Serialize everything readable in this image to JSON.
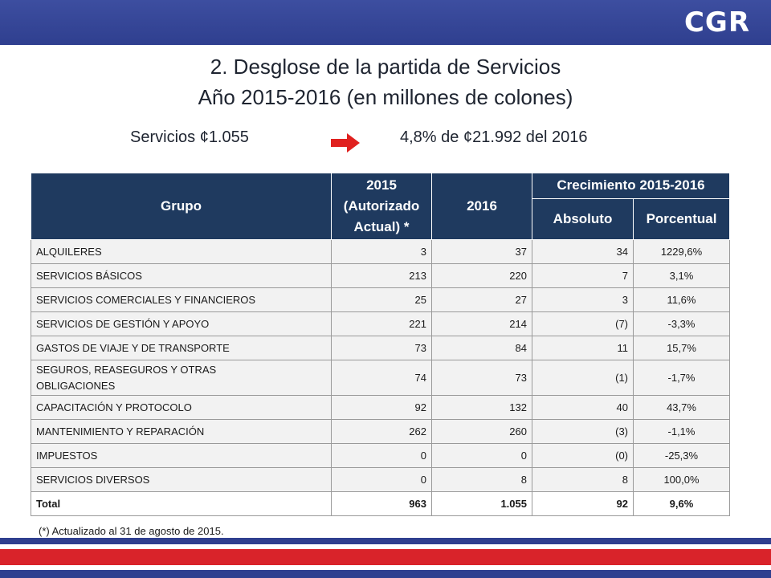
{
  "logo": "CGR",
  "title": {
    "line1": "2. Desglose de la partida de Servicios",
    "line2": "Año 2015-2016 (en millones de colones)"
  },
  "summary": {
    "left": "Servicios ¢1.055",
    "right": "4,8%  de ¢21.992 del 2016"
  },
  "colors": {
    "header": "#1f3a5f",
    "topbar": "#2f3f8f",
    "arrow": "#e0211f",
    "stripe_blue": "#2f3f8f",
    "stripe_red": "#d9232a"
  },
  "table": {
    "headers": {
      "grupo": "Grupo",
      "y2015": "2015 (Autorizado Actual) *",
      "y2016": "2016",
      "crecimiento": "Crecimiento 2015-2016",
      "absoluto": "Absoluto",
      "porcentual": "Porcentual"
    },
    "rows": [
      {
        "grupo": "ALQUILERES",
        "y2015": "3",
        "y2016": "37",
        "absoluto": "34",
        "porcentual": "1229,6%"
      },
      {
        "grupo": "SERVICIOS BÁSICOS",
        "y2015": "213",
        "y2016": "220",
        "absoluto": "7",
        "porcentual": "3,1%"
      },
      {
        "grupo": "SERVICIOS COMERCIALES Y FINANCIEROS",
        "y2015": "25",
        "y2016": "27",
        "absoluto": "3",
        "porcentual": "11,6%"
      },
      {
        "grupo": "SERVICIOS DE GESTIÓN Y APOYO",
        "y2015": "221",
        "y2016": "214",
        "absoluto": "(7)",
        "porcentual": "-3,3%"
      },
      {
        "grupo": "GASTOS DE VIAJE Y DE TRANSPORTE",
        "y2015": "73",
        "y2016": "84",
        "absoluto": "11",
        "porcentual": "15,7%"
      },
      {
        "grupo": "SEGUROS, REASEGUROS Y OTRAS OBLIGACIONES",
        "y2015": "74",
        "y2016": "73",
        "absoluto": "(1)",
        "porcentual": "-1,7%"
      },
      {
        "grupo": "CAPACITACIÓN Y PROTOCOLO",
        "y2015": "92",
        "y2016": "132",
        "absoluto": "40",
        "porcentual": "43,7%"
      },
      {
        "grupo": "MANTENIMIENTO Y REPARACIÓN",
        "y2015": "262",
        "y2016": "260",
        "absoluto": "(3)",
        "porcentual": "-1,1%"
      },
      {
        "grupo": "IMPUESTOS",
        "y2015": "0",
        "y2016": "0",
        "absoluto": "(0)",
        "porcentual": "-25,3%"
      },
      {
        "grupo": "SERVICIOS DIVERSOS",
        "y2015": "0",
        "y2016": "8",
        "absoluto": "8",
        "porcentual": "100,0%"
      }
    ],
    "total": {
      "grupo": "Total",
      "y2015": "963",
      "y2016": "1.055",
      "absoluto": "92",
      "porcentual": "9,6%"
    }
  },
  "footnote": "(*) Actualizado al 31 de agosto de 2015."
}
